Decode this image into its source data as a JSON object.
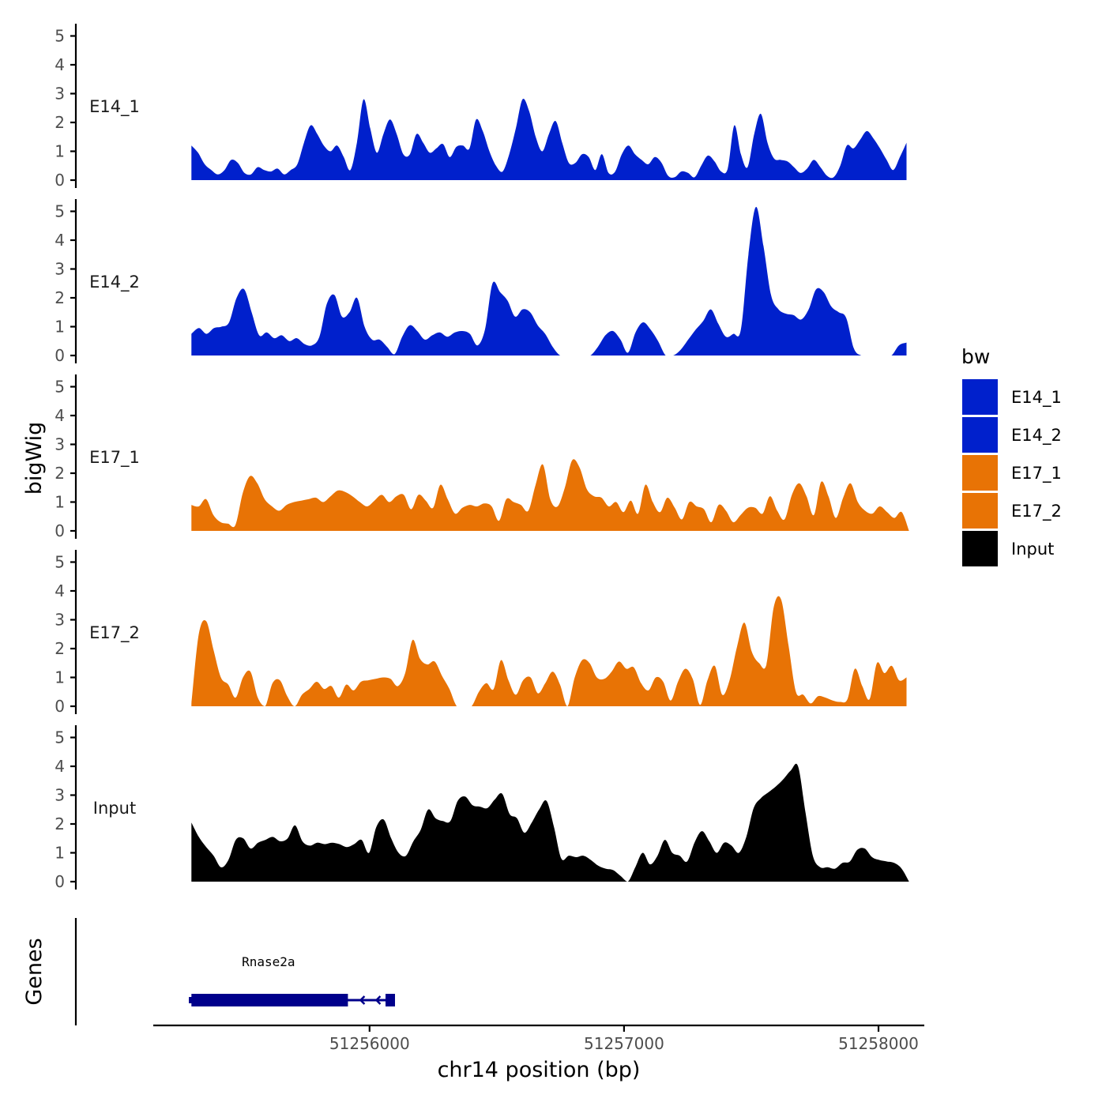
{
  "chart_data": {
    "type": "area",
    "title": "",
    "xlabel": "chr14 position (bp)",
    "ylabel": "bigWig",
    "genes_label": "Genes",
    "xlim": [
      51255150,
      51258180
    ],
    "x_ticks": [
      {
        "value": 51256000,
        "label": "51256000"
      },
      {
        "value": 51257000,
        "label": "51257000"
      },
      {
        "value": 51258000,
        "label": "51258000"
      }
    ],
    "y_ticks": [
      0,
      1,
      2,
      3,
      4,
      5
    ],
    "ylim": [
      0,
      5.3
    ],
    "x_start": 51255300,
    "x_end": 51258110,
    "legend": {
      "title": "bw",
      "position": "right",
      "items": [
        {
          "label": "E14_1",
          "color": "#0020cc"
        },
        {
          "label": "E14_2",
          "color": "#0020cc"
        },
        {
          "label": "E17_1",
          "color": "#e87305"
        },
        {
          "label": "E17_2",
          "color": "#e87305"
        },
        {
          "label": "Input",
          "color": "#000000"
        }
      ]
    },
    "series": [
      {
        "name": "E14_1",
        "color": "#0020cc",
        "x_end": 51258110,
        "values": [
          1.2,
          0.95,
          0.55,
          0.35,
          0.2,
          0.35,
          0.7,
          0.6,
          0.25,
          0.2,
          0.45,
          0.35,
          0.3,
          0.4,
          0.2,
          0.35,
          0.55,
          1.3,
          1.9,
          1.6,
          1.2,
          1.0,
          1.2,
          0.8,
          0.35,
          1.3,
          2.8,
          1.8,
          0.95,
          1.6,
          2.1,
          1.6,
          0.9,
          0.9,
          1.6,
          1.3,
          0.95,
          1.1,
          1.25,
          0.8,
          1.15,
          1.2,
          1.1,
          2.1,
          1.7,
          1.0,
          0.5,
          0.3,
          0.9,
          1.8,
          2.8,
          2.4,
          1.5,
          1.0,
          1.6,
          2.05,
          1.3,
          0.6,
          0.6,
          0.9,
          0.8,
          0.35,
          0.9,
          0.25,
          0.3,
          0.9,
          1.2,
          0.9,
          0.7,
          0.55,
          0.8,
          0.6,
          0.15,
          0.1,
          0.3,
          0.25,
          0.1,
          0.5,
          0.85,
          0.65,
          0.3,
          0.4,
          1.9,
          0.9,
          0.45,
          1.6,
          2.3,
          1.3,
          0.75,
          0.7,
          0.65,
          0.45,
          0.25,
          0.4,
          0.7,
          0.45,
          0.15,
          0.1,
          0.5,
          1.2,
          1.1,
          1.4,
          1.7,
          1.45,
          1.1,
          0.7,
          0.35,
          0.8,
          1.3
        ]
      },
      {
        "name": "E14_2",
        "color": "#0020cc",
        "x_end": 51258110,
        "values": [
          0.75,
          0.95,
          0.75,
          0.95,
          1.0,
          1.15,
          2.0,
          2.3,
          1.5,
          0.7,
          0.8,
          0.6,
          0.7,
          0.5,
          0.6,
          0.4,
          0.35,
          0.65,
          1.8,
          2.1,
          1.35,
          1.5,
          2.0,
          1.0,
          0.55,
          0.55,
          0.3,
          0.05,
          0.65,
          1.05,
          0.85,
          0.55,
          0.7,
          0.8,
          0.65,
          0.8,
          0.85,
          0.75,
          0.35,
          0.9,
          2.5,
          2.2,
          1.9,
          1.35,
          1.6,
          1.5,
          1.05,
          0.75,
          0.3,
          0.0,
          0.0,
          0.0,
          0.0,
          0.0,
          0.3,
          0.7,
          0.85,
          0.55,
          0.1,
          0.8,
          1.15,
          0.9,
          0.5,
          0.0,
          0.0,
          0.2,
          0.55,
          0.9,
          1.2,
          1.6,
          1.1,
          0.65,
          0.75,
          0.9,
          3.5,
          5.15,
          3.8,
          2.1,
          1.6,
          1.45,
          1.4,
          1.25,
          1.6,
          2.3,
          2.2,
          1.7,
          1.5,
          1.3,
          0.25,
          0.0,
          0.0,
          0.0,
          0.0,
          0.0,
          0.35,
          0.45
        ]
      },
      {
        "name": "E17_1",
        "color": "#e87305",
        "x_end": 51258120,
        "values": [
          0.9,
          0.85,
          1.1,
          0.55,
          0.3,
          0.25,
          0.2,
          1.3,
          1.9,
          1.65,
          1.1,
          0.85,
          0.7,
          0.9,
          1.0,
          1.05,
          1.1,
          1.15,
          1.0,
          1.2,
          1.4,
          1.35,
          1.2,
          1.0,
          0.85,
          1.05,
          1.25,
          1.0,
          1.2,
          1.25,
          0.75,
          1.25,
          1.05,
          0.8,
          1.6,
          1.1,
          0.6,
          0.8,
          0.9,
          0.85,
          0.95,
          0.85,
          0.35,
          1.1,
          1.0,
          0.9,
          0.7,
          1.6,
          2.3,
          1.1,
          0.85,
          1.5,
          2.45,
          2.2,
          1.45,
          1.2,
          1.15,
          0.85,
          1.0,
          0.65,
          1.05,
          0.6,
          1.6,
          1.0,
          0.65,
          1.15,
          0.8,
          0.4,
          1.0,
          0.85,
          0.75,
          0.3,
          0.9,
          0.7,
          0.3,
          0.55,
          0.8,
          0.8,
          0.6,
          1.2,
          0.7,
          0.4,
          1.25,
          1.65,
          1.2,
          0.55,
          1.7,
          1.2,
          0.45,
          1.15,
          1.65,
          1.0,
          0.7,
          0.6,
          0.85,
          0.65,
          0.45,
          0.65,
          0.0
        ]
      },
      {
        "name": "E17_2",
        "color": "#e87305",
        "x_end": 51258110,
        "values": [
          0.1,
          2.5,
          2.95,
          1.95,
          1.0,
          0.75,
          0.3,
          1.0,
          1.2,
          0.3,
          0.0,
          0.8,
          0.9,
          0.35,
          0.0,
          0.4,
          0.6,
          0.85,
          0.6,
          0.7,
          0.3,
          0.75,
          0.55,
          0.85,
          0.9,
          0.95,
          1.0,
          0.95,
          0.7,
          1.15,
          2.3,
          1.65,
          1.45,
          1.55,
          1.05,
          0.6,
          0.0,
          0.0,
          0.0,
          0.5,
          0.8,
          0.6,
          1.6,
          0.9,
          0.4,
          0.9,
          1.0,
          0.45,
          0.8,
          1.2,
          0.75,
          0.0,
          1.0,
          1.6,
          1.5,
          1.0,
          0.95,
          1.2,
          1.55,
          1.3,
          1.35,
          0.8,
          0.55,
          1.0,
          0.85,
          0.2,
          0.85,
          1.3,
          0.95,
          0.05,
          0.9,
          1.4,
          0.4,
          0.9,
          2.05,
          2.9,
          1.9,
          1.5,
          1.45,
          3.45,
          3.7,
          2.1,
          0.5,
          0.4,
          0.1,
          0.35,
          0.3,
          0.2,
          0.15,
          0.25,
          1.3,
          0.7,
          0.25,
          1.5,
          1.15,
          1.4,
          0.9,
          1.0
        ]
      },
      {
        "name": "Input",
        "color": "#000000",
        "x_end": 51258120,
        "values": [
          2.05,
          1.55,
          1.2,
          0.9,
          0.5,
          0.75,
          1.45,
          1.5,
          1.15,
          1.35,
          1.45,
          1.55,
          1.4,
          1.5,
          1.95,
          1.4,
          1.25,
          1.35,
          1.3,
          1.35,
          1.3,
          1.2,
          1.3,
          1.45,
          1.0,
          1.9,
          2.15,
          1.5,
          1.0,
          0.9,
          1.4,
          1.8,
          2.5,
          2.2,
          2.1,
          2.1,
          2.8,
          2.95,
          2.65,
          2.6,
          2.55,
          2.85,
          3.05,
          2.35,
          2.2,
          1.7,
          2.05,
          2.5,
          2.8,
          1.9,
          0.8,
          0.9,
          0.85,
          0.9,
          0.75,
          0.55,
          0.45,
          0.4,
          0.2,
          0.0,
          0.5,
          1.0,
          0.6,
          0.9,
          1.45,
          1.0,
          0.9,
          0.7,
          1.35,
          1.75,
          1.4,
          1.0,
          1.35,
          1.25,
          1.0,
          1.55,
          2.55,
          2.9,
          3.1,
          3.3,
          3.55,
          3.85,
          4.0,
          2.4,
          0.9,
          0.5,
          0.5,
          0.45,
          0.65,
          0.7,
          1.1,
          1.15,
          0.85,
          0.75,
          0.7,
          0.65,
          0.45,
          0.0
        ]
      }
    ],
    "gene": {
      "name": "Rnase2a",
      "strand": "-",
      "start": 51255290,
      "end": 51256100,
      "thick_start": 51255300,
      "thick_end": 51255915,
      "color": "#00008b"
    }
  }
}
